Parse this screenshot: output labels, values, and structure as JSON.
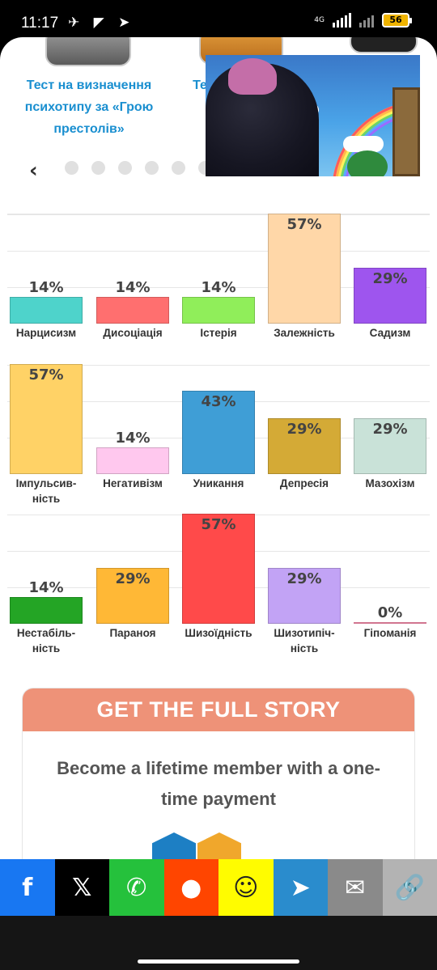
{
  "status_bar": {
    "time": "11:17",
    "network": "4G",
    "battery": "56",
    "icons": "✈ ◤ ➤"
  },
  "carousel": {
    "quiz1_title": "Тест на визначення психотипу за «Грою престолів»",
    "quiz2_title_fragment": "Те",
    "prev_icon": "‹"
  },
  "rows": [
    {
      "items": [
        {
          "pct": "14%",
          "value": 14,
          "label": "Нарцисизм",
          "color": "#4ed3cb"
        },
        {
          "pct": "14%",
          "value": 14,
          "label": "Дисоціація",
          "color": "#ff6f6f"
        },
        {
          "pct": "14%",
          "value": 14,
          "label": "Істерія",
          "color": "#90ee5a"
        },
        {
          "pct": "57%",
          "value": 57,
          "label": "Залежність",
          "color": "#ffd7a8"
        },
        {
          "pct": "29%",
          "value": 29,
          "label": "Садизм",
          "color": "#9e55ee"
        }
      ]
    },
    {
      "items": [
        {
          "pct": "57%",
          "value": 57,
          "label": "Імпульсив-ність",
          "color": "#ffd266"
        },
        {
          "pct": "14%",
          "value": 14,
          "label": "Негативізм",
          "color": "#ffc8ee"
        },
        {
          "pct": "43%",
          "value": 43,
          "label": "Уникання",
          "color": "#3f9ed6"
        },
        {
          "pct": "29%",
          "value": 29,
          "label": "Депресія",
          "color": "#d4aa36"
        },
        {
          "pct": "29%",
          "value": 29,
          "label": "Мазохізм",
          "color": "#c9e2d8"
        }
      ]
    },
    {
      "items": [
        {
          "pct": "14%",
          "value": 14,
          "label": "Нестабіль-ність",
          "color": "#24a525"
        },
        {
          "pct": "29%",
          "value": 29,
          "label": "Параноя",
          "color": "#ffb836"
        },
        {
          "pct": "57%",
          "value": 57,
          "label": "Шизоїдність",
          "color": "#ff4a4a"
        },
        {
          "pct": "29%",
          "value": 29,
          "label": "Шизотипіч-ність",
          "color": "#c2a3f5"
        },
        {
          "pct": "0%",
          "value": 0,
          "label": "Гіпоманія",
          "color": "#ff8fb0"
        }
      ]
    }
  ],
  "promo": {
    "header": "GET THE FULL STORY",
    "text": "Become a lifetime member with a one-time payment"
  },
  "share": [
    {
      "name": "facebook-share-button",
      "icon": "f",
      "color": "#1877f2"
    },
    {
      "name": "x-share-button",
      "icon": "𝕏",
      "color": "#000000"
    },
    {
      "name": "whatsapp-share-button",
      "icon": "✆",
      "color": "#25c13c"
    },
    {
      "name": "reddit-share-button",
      "icon": "●",
      "color": "#ff4500"
    },
    {
      "name": "snapchat-share-button",
      "icon": "☺",
      "color": "#fffc00"
    },
    {
      "name": "telegram-share-button",
      "icon": "➤",
      "color": "#2a8ccd"
    },
    {
      "name": "email-share-button",
      "icon": "✉",
      "color": "#8a8a8a"
    },
    {
      "name": "copy-link-button",
      "icon": "🔗",
      "color": "#b3b3b3"
    }
  ]
}
